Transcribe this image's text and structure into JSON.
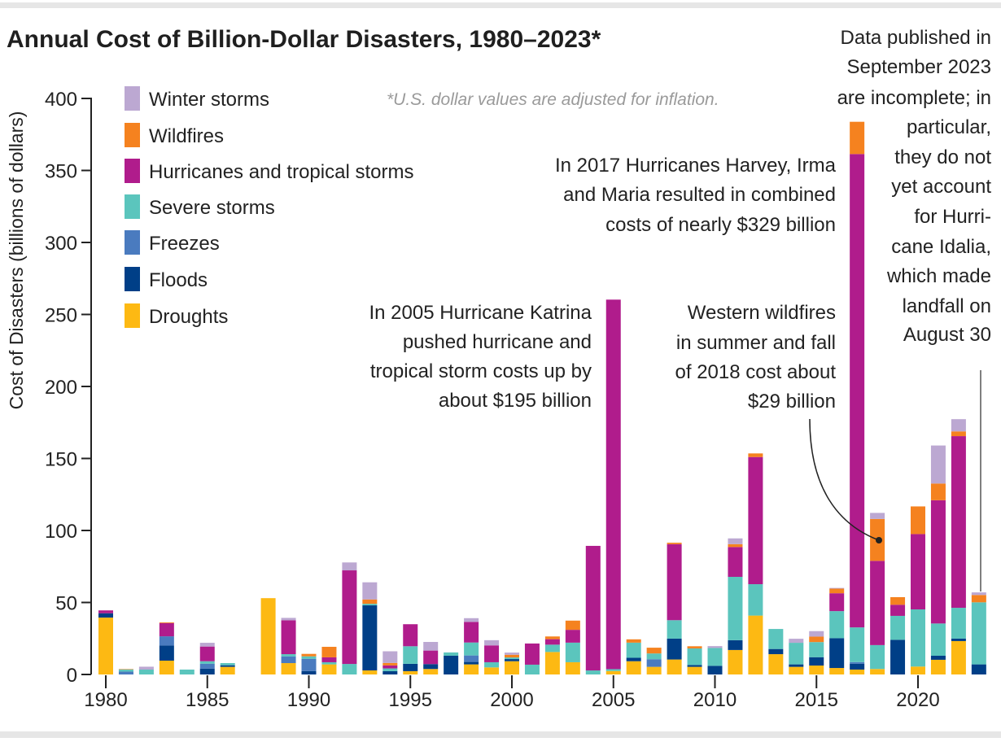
{
  "chart_data": {
    "type": "bar",
    "stacked": true,
    "title": "Annual Cost of Billion-Dollar Disasters, 1980–2023*",
    "footnote": "*U.S. dollar values are adjusted for inflation.",
    "ylabel": "Cost of Disasters (billions of dollars)",
    "xlabel": "",
    "ylim": [
      0,
      400
    ],
    "yticks": [
      0,
      50,
      100,
      150,
      200,
      250,
      300,
      350,
      400
    ],
    "xticks": [
      1980,
      1985,
      1990,
      1995,
      2000,
      2005,
      2010,
      2015,
      2020
    ],
    "grid": false,
    "legend_position": "top-left",
    "categories": [
      1980,
      1981,
      1982,
      1983,
      1984,
      1985,
      1986,
      1987,
      1988,
      1989,
      1990,
      1991,
      1992,
      1993,
      1994,
      1995,
      1996,
      1997,
      1998,
      1999,
      2000,
      2001,
      2002,
      2003,
      2004,
      2005,
      2006,
      2007,
      2008,
      2009,
      2010,
      2011,
      2012,
      2013,
      2014,
      2015,
      2016,
      2017,
      2018,
      2019,
      2020,
      2021,
      2022,
      2023
    ],
    "series": [
      {
        "name": "Droughts",
        "color": "#fdb913",
        "values": [
          39.5,
          0,
          0,
          9.6,
          0,
          0,
          5.3,
          0,
          53,
          7.9,
          0,
          7,
          0,
          2.8,
          0,
          2.3,
          3.8,
          0,
          7,
          4.9,
          9.2,
          0,
          15.6,
          8.5,
          0,
          2.4,
          9.2,
          5.3,
          10.4,
          5.3,
          0,
          17,
          40.9,
          14.1,
          5.3,
          6.2,
          4.5,
          3.4,
          3.8,
          0,
          5.5,
          10.2,
          23.2,
          0
        ]
      },
      {
        "name": "Floods",
        "color": "#003f87",
        "values": [
          3,
          0,
          0,
          10.5,
          0,
          4.1,
          1.1,
          0,
          0,
          0,
          2.4,
          0,
          0,
          45.2,
          2.3,
          5.1,
          3.4,
          13,
          1.7,
          0,
          1.5,
          0,
          0,
          0,
          0,
          0,
          2.4,
          0,
          14.5,
          1.3,
          6,
          6.8,
          0,
          3.6,
          1.7,
          5.8,
          20.7,
          4.1,
          0,
          24.1,
          0,
          2.8,
          1.7,
          7
        ]
      },
      {
        "name": "Freezes",
        "color": "#4a7bbf",
        "values": [
          0,
          2,
          0,
          6.4,
          0,
          3.4,
          0,
          0,
          0,
          4.7,
          8.5,
          0,
          0,
          0,
          0,
          0,
          0,
          0,
          4.5,
          0,
          0,
          0,
          0,
          0,
          0,
          0,
          0,
          5.3,
          0,
          0,
          0,
          0,
          0,
          0,
          0,
          0,
          0,
          1.1,
          0,
          0,
          0,
          0,
          0,
          0
        ]
      },
      {
        "name": "Severe storms",
        "color": "#5bc5bd",
        "values": [
          0,
          1.5,
          3.4,
          0,
          3.4,
          1.7,
          1.5,
          0,
          0,
          1.5,
          1.7,
          1.5,
          7.3,
          1.1,
          1.9,
          12.2,
          0,
          2.3,
          9,
          3.6,
          1.1,
          6.8,
          5.1,
          13.6,
          2.8,
          1.3,
          10.5,
          4,
          12.8,
          11.5,
          12.4,
          44,
          21.8,
          13.9,
          15,
          10.5,
          18.8,
          24.1,
          16.6,
          16.6,
          39.7,
          22.4,
          21.4,
          43.1
        ]
      },
      {
        "name": "Hurricanes and tropical storms",
        "color": "#b01c8c",
        "values": [
          2,
          0,
          0,
          9.2,
          0,
          10.2,
          0,
          0,
          0,
          23.5,
          0,
          3.4,
          65,
          0,
          2.1,
          15.3,
          9.4,
          0,
          14.3,
          11.7,
          0,
          14.7,
          3.8,
          8.9,
          86.5,
          256.6,
          0,
          0,
          52.8,
          0,
          0,
          20.7,
          88.3,
          0,
          0,
          0,
          12.4,
          328.7,
          58.5,
          7.7,
          52.3,
          85.6,
          119.2,
          0
        ]
      },
      {
        "name": "Wildfires",
        "color": "#f5821f",
        "values": [
          0,
          0.3,
          0,
          0.5,
          0,
          0,
          0,
          0,
          0,
          0,
          1.7,
          7.3,
          0,
          3,
          1.7,
          0,
          0,
          0,
          0,
          0,
          1.9,
          0,
          1.9,
          6.4,
          0,
          0,
          2.3,
          4,
          1,
          1.5,
          0,
          2,
          2.5,
          0,
          0,
          3.8,
          3.2,
          22.4,
          29.1,
          5.3,
          19.2,
          11.6,
          3.3,
          5.1
        ]
      },
      {
        "name": "Winter storms",
        "color": "#bca8d2",
        "values": [
          0,
          0,
          2,
          0,
          0,
          2.6,
          0,
          0,
          0,
          1.7,
          0,
          0,
          5.5,
          11.9,
          8.1,
          0,
          6,
          0,
          2.6,
          3.6,
          1.5,
          0,
          0,
          0,
          0,
          0,
          0,
          0,
          0,
          0,
          1.3,
          4,
          0,
          0,
          2.8,
          3.8,
          0.5,
          0,
          4.2,
          0,
          0,
          26.4,
          8.5,
          1.8
        ]
      }
    ]
  },
  "legend": [
    "Winter storms",
    "Wildfires",
    "Hurricanes and tropical storms",
    "Severe storms",
    "Freezes",
    "Floods",
    "Droughts"
  ],
  "annotations": {
    "katrina": [
      "In 2005 Hurricane Katrina",
      "pushed hurricane and",
      "tropical storm costs up by",
      "about $195 billion"
    ],
    "harvey": [
      "In 2017 Hurricanes Harvey, Irma",
      "and Maria resulted in combined",
      "costs of nearly $329 billion"
    ],
    "wildfires": [
      "Western wildfires",
      "in summer and fall",
      "of 2018 cost about",
      "$29 billion"
    ],
    "idalia": [
      "Data published in",
      "September 2023",
      "are incomplete; in",
      "particular,",
      "they do not",
      "yet account",
      "for Hurri-",
      "cane Idalia,",
      "which made",
      "landfall on",
      "August 30"
    ]
  }
}
